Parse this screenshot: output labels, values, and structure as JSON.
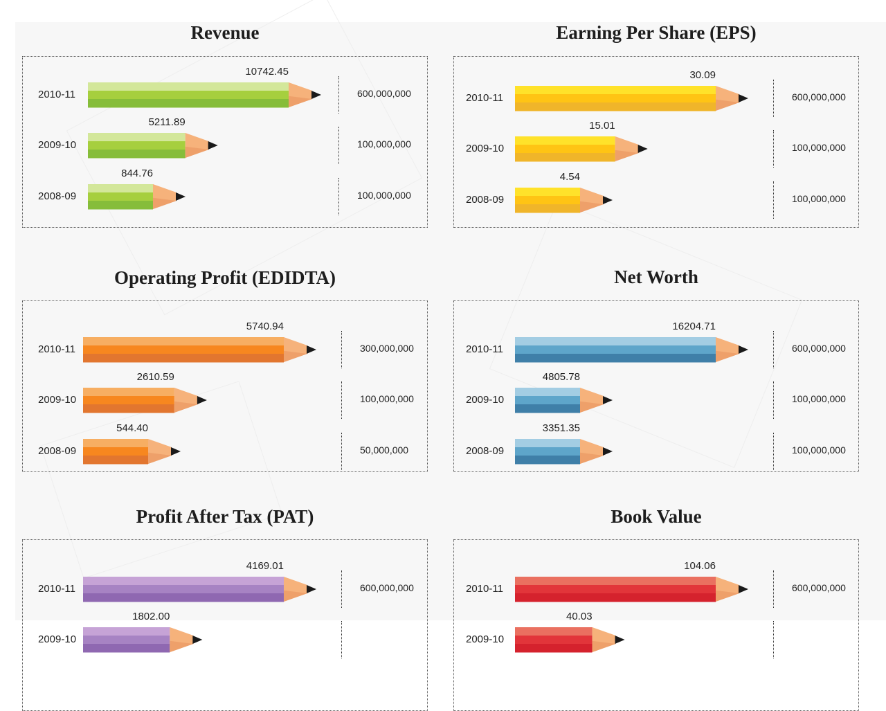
{
  "chart_data": [
    {
      "type": "bar",
      "title": "Revenue",
      "categories": [
        "2010-11",
        "2009-10",
        "2008-09"
      ],
      "values": [
        10742.45,
        5211.89,
        844.76
      ],
      "value_labels": [
        "10742.45",
        "5211.89",
        "844.76"
      ],
      "scale_labels": [
        "600,000,000",
        "100,000,000",
        "100,000,000"
      ],
      "colors": [
        "#d3e79a",
        "#a6cf3e",
        "#86bd3a"
      ]
    },
    {
      "type": "bar",
      "title": "Earning Per Share (EPS)",
      "categories": [
        "2010-11",
        "2009-10",
        "2008-09"
      ],
      "values": [
        30.09,
        15.01,
        4.54
      ],
      "value_labels": [
        "30.09",
        "15.01",
        "4.54"
      ],
      "scale_labels": [
        "600,000,000",
        "100,000,000",
        "100,000,000"
      ],
      "colors": [
        "#ffe22a",
        "#ffc414",
        "#f0b52a"
      ]
    },
    {
      "type": "bar",
      "title": "Operating Profit (EDIDTA)",
      "categories": [
        "2010-11",
        "2009-10",
        "2008-09"
      ],
      "values": [
        5740.94,
        2610.59,
        544.4
      ],
      "value_labels": [
        "5740.94",
        "2610.59",
        "544.40"
      ],
      "scale_labels": [
        "300,000,000",
        "100,000,000",
        "50,000,000"
      ],
      "colors": [
        "#f7ae62",
        "#f7871f",
        "#e2762f"
      ]
    },
    {
      "type": "bar",
      "title": "Net Worth",
      "categories": [
        "2010-11",
        "2009-10",
        "2008-09"
      ],
      "values": [
        16204.71,
        4805.78,
        3351.35
      ],
      "value_labels": [
        "16204.71",
        "4805.78",
        "3351.35"
      ],
      "scale_labels": [
        "600,000,000",
        "100,000,000",
        "100,000,000"
      ],
      "colors": [
        "#a3cde3",
        "#5ea5ca",
        "#3f7fa8"
      ]
    },
    {
      "type": "bar",
      "title": "Profit After Tax (PAT)",
      "categories": [
        "2010-11",
        "2009-10"
      ],
      "values": [
        4169.01,
        1802.0
      ],
      "value_labels": [
        "4169.01",
        "1802.00"
      ],
      "scale_labels": [
        "600,000,000",
        ""
      ],
      "colors": [
        "#c6a3d6",
        "#a783c3",
        "#8f68b1"
      ]
    },
    {
      "type": "bar",
      "title": "Book Value",
      "categories": [
        "2010-11",
        "2009-10"
      ],
      "values": [
        104.06,
        40.03
      ],
      "value_labels": [
        "104.06",
        "40.03"
      ],
      "scale_labels": [
        "600,000,000",
        ""
      ],
      "colors": [
        "#ea7060",
        "#e2353a",
        "#d5222d"
      ]
    }
  ]
}
